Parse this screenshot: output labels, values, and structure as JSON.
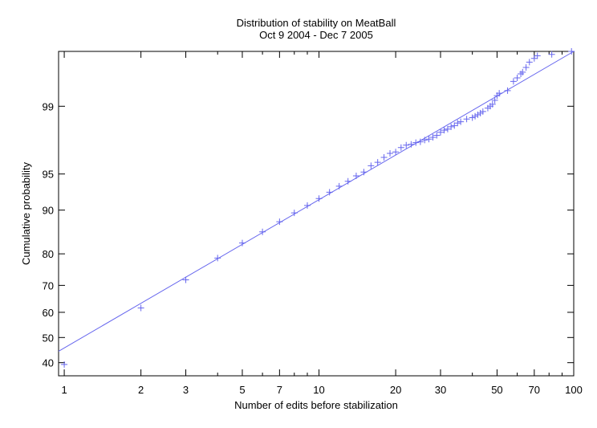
{
  "chart_data": {
    "type": "scatter",
    "title": "Distribution of stability on MeatBall",
    "subtitle": "Oct 9 2004 - Dec 7 2005",
    "xlabel": "Number of edits before stabilization",
    "ylabel": "Cumulative probability",
    "x_scale": "log",
    "y_scale": "probit",
    "xlim": [
      0.95,
      100
    ],
    "ylim": [
      35,
      99.8
    ],
    "x_ticks": [
      "1",
      "2",
      "3",
      "5",
      "7",
      "10",
      "20",
      "30",
      "50",
      "70",
      "100"
    ],
    "y_ticks": [
      "40",
      "50",
      "60",
      "70",
      "80",
      "90",
      "95",
      "99"
    ],
    "fit_line": {
      "from": [
        0.95,
        44.5
      ],
      "to": [
        100,
        99.8
      ]
    },
    "colors": {
      "points": "#6666ee",
      "fit": "#6666ee",
      "axes": "#000000"
    },
    "series": [
      {
        "values": [
          [
            1,
            39.3
          ],
          [
            2,
            61.7
          ],
          [
            3,
            71.9
          ],
          [
            4,
            78.8
          ],
          [
            5,
            82.9
          ],
          [
            6,
            85.6
          ],
          [
            7,
            87.8
          ],
          [
            8,
            89.5
          ],
          [
            9,
            90.8
          ],
          [
            10,
            91.9
          ],
          [
            11,
            92.8
          ],
          [
            12,
            93.6
          ],
          [
            13,
            94.2
          ],
          [
            14,
            94.8
          ],
          [
            15,
            95.2
          ],
          [
            16,
            95.8
          ],
          [
            17,
            96.1
          ],
          [
            18,
            96.5
          ],
          [
            19,
            96.8
          ],
          [
            20,
            96.9
          ],
          [
            21,
            97.2
          ],
          [
            22,
            97.35
          ],
          [
            23,
            97.4
          ],
          [
            24,
            97.5
          ],
          [
            25,
            97.55
          ],
          [
            26,
            97.65
          ],
          [
            27,
            97.7
          ],
          [
            28,
            97.8
          ],
          [
            29,
            97.9
          ],
          [
            30,
            98.05
          ],
          [
            31,
            98.15
          ],
          [
            32,
            98.2
          ],
          [
            33,
            98.3
          ],
          [
            34,
            98.35
          ],
          [
            35,
            98.45
          ],
          [
            36,
            98.5
          ],
          [
            38,
            98.6
          ],
          [
            40,
            98.65
          ],
          [
            41,
            98.7
          ],
          [
            42,
            98.75
          ],
          [
            43,
            98.8
          ],
          [
            44,
            98.85
          ],
          [
            46,
            98.95
          ],
          [
            47,
            99.0
          ],
          [
            48,
            99.05
          ],
          [
            49,
            99.15
          ],
          [
            50,
            99.25
          ],
          [
            51,
            99.3
          ],
          [
            55,
            99.35
          ],
          [
            58,
            99.5
          ],
          [
            60,
            99.55
          ],
          [
            62,
            99.6
          ],
          [
            63,
            99.62
          ],
          [
            65,
            99.67
          ],
          [
            67,
            99.72
          ],
          [
            70,
            99.75
          ],
          [
            72,
            99.77
          ],
          [
            82,
            99.78
          ],
          [
            98,
            99.8
          ]
        ]
      }
    ]
  }
}
